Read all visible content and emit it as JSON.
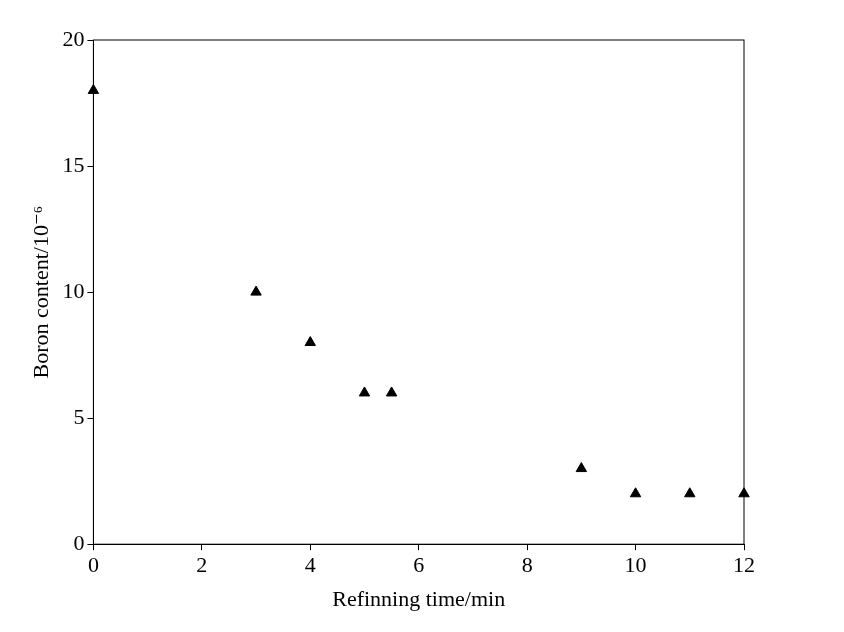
{
  "chart_data": {
    "type": "scatter",
    "xlabel": "Refinning time/min",
    "ylabel": "Boron content/10⁻⁶",
    "x": [
      0,
      3,
      4,
      5,
      5.5,
      9,
      10,
      11,
      12
    ],
    "values": [
      18,
      10,
      8,
      6,
      6,
      3,
      2,
      2,
      2
    ],
    "color": "#000000",
    "marker": "triangle",
    "xlim": [
      0,
      12
    ],
    "xticks": [
      0,
      2,
      4,
      6,
      8,
      10,
      12
    ],
    "ylim": [
      0,
      20
    ],
    "yticks": [
      0,
      5,
      10,
      15,
      20
    ],
    "grid": false
  }
}
